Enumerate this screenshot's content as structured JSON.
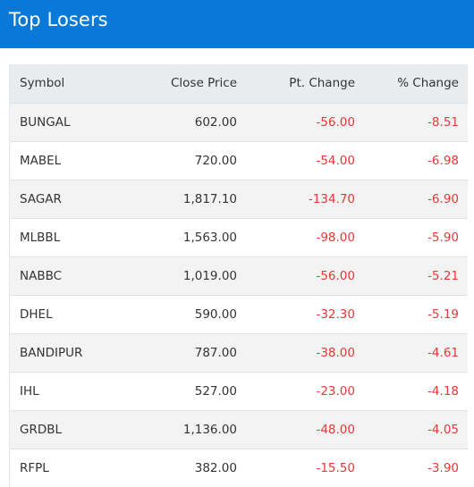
{
  "header": {
    "title": "Top Losers",
    "background_color": "#0879d6"
  },
  "table": {
    "columns": [
      "Symbol",
      "Close Price",
      "Pt. Change",
      "% Change"
    ],
    "negative_color": "#e53935",
    "rows": [
      {
        "symbol": "BUNGAL",
        "close_price": "602.00",
        "pt_change": "-56.00",
        "pct_change": "-8.51"
      },
      {
        "symbol": "MABEL",
        "close_price": "720.00",
        "pt_change": "-54.00",
        "pct_change": "-6.98"
      },
      {
        "symbol": "SAGAR",
        "close_price": "1,817.10",
        "pt_change": "-134.70",
        "pct_change": "-6.90"
      },
      {
        "symbol": "MLBBL",
        "close_price": "1,563.00",
        "pt_change": "-98.00",
        "pct_change": "-5.90"
      },
      {
        "symbol": "NABBC",
        "close_price": "1,019.00",
        "pt_change": "-56.00",
        "pct_change": "-5.21"
      },
      {
        "symbol": "DHEL",
        "close_price": "590.00",
        "pt_change": "-32.30",
        "pct_change": "-5.19"
      },
      {
        "symbol": "BANDIPUR",
        "close_price": "787.00",
        "pt_change": "-38.00",
        "pct_change": "-4.61"
      },
      {
        "symbol": "IHL",
        "close_price": "527.00",
        "pt_change": "-23.00",
        "pct_change": "-4.18"
      },
      {
        "symbol": "GRDBL",
        "close_price": "1,136.00",
        "pt_change": "-48.00",
        "pct_change": "-4.05"
      },
      {
        "symbol": "RFPL",
        "close_price": "382.00",
        "pt_change": "-15.50",
        "pct_change": "-3.90"
      }
    ]
  }
}
